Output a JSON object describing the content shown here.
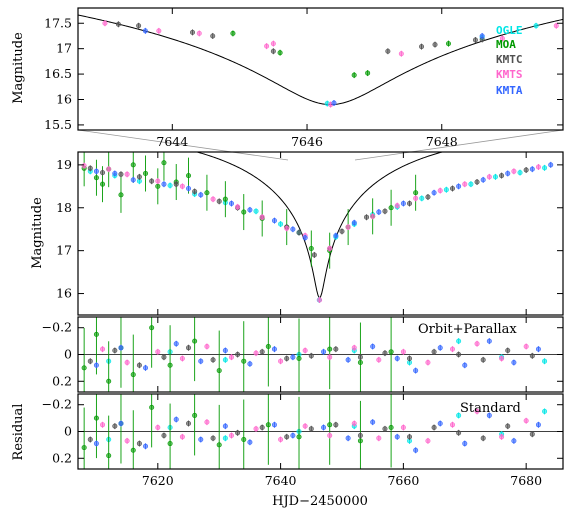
{
  "figure": {
    "x_axis_title": "HJD−2450000",
    "y_axis_title_zoom": "Magnitude",
    "y_axis_title_main": "Magnitude",
    "y_axis_title_residual": "Residual",
    "label_parallax": "Orbit+Parallax",
    "label_standard": "Standard"
  },
  "colors": {
    "OGLE": "#00e6e6",
    "MOA": "#009900",
    "KMTC": "#505050",
    "KMTS": "#ff66cc",
    "KMTA": "#3366ff",
    "model": "#000000",
    "zoom_box": "#999999"
  },
  "chart_data": [
    {
      "id": "zoom",
      "type": "scatter",
      "xlim": [
        7642.6,
        7649.8
      ],
      "ylim": [
        17.8,
        15.4
      ],
      "xticks": [
        7644,
        7646,
        7648
      ],
      "yticks": [
        15.5,
        16,
        16.5,
        17,
        17.5
      ],
      "xtick_labels": [
        "7644",
        "7646",
        "7648"
      ],
      "ytick_labels": [
        "15.5",
        "16",
        "16.5",
        "17",
        "17.5"
      ],
      "ylabel": "Magnitude",
      "model": {
        "t0": 7646.35,
        "peak_mag": 15.9,
        "base_mag": 19.9,
        "u0": 0.025,
        "tE": 30
      },
      "legend": [
        "OGLE",
        "MOA",
        "KMTC",
        "KMTS",
        "KMTA"
      ],
      "series": [
        {
          "name": "OGLE",
          "x": [
            7646.3,
            7648.6,
            7649.4
          ],
          "y": [
            15.92,
            17.22,
            17.45
          ]
        },
        {
          "name": "MOA",
          "x": [
            7644.9,
            7645.6,
            7646.7,
            7646.9,
            7648.1
          ],
          "y": [
            17.3,
            16.92,
            16.48,
            16.52,
            17.1
          ]
        },
        {
          "name": "KMTC",
          "x": [
            7643.2,
            7643.5,
            7644.3,
            7644.6,
            7645.5,
            7647.2,
            7647.7,
            7647.9,
            7648.5,
            7648.6
          ],
          "y": [
            17.48,
            17.45,
            17.32,
            17.25,
            16.95,
            16.95,
            17.04,
            17.08,
            17.17,
            17.18
          ]
        },
        {
          "name": "KMTS",
          "x": [
            7643.0,
            7643.8,
            7644.4,
            7645.4,
            7645.5,
            7646.35,
            7647.4,
            7648.9,
            7649.7
          ],
          "y": [
            17.5,
            17.35,
            17.3,
            17.05,
            17.1,
            15.9,
            16.9,
            17.2,
            17.45
          ]
        },
        {
          "name": "KMTA",
          "x": [
            7643.6,
            7646.4,
            7648.6
          ],
          "y": [
            17.35,
            15.93,
            17.25
          ]
        }
      ]
    },
    {
      "id": "main",
      "type": "scatter",
      "xlim": [
        7607,
        7686
      ],
      "ylim": [
        19.3,
        15.5
      ],
      "xticks": [
        7620,
        7640,
        7660,
        7680
      ],
      "yticks": [
        16,
        17,
        18,
        19
      ],
      "ytick_labels": [
        "16",
        "17",
        "18",
        "19"
      ],
      "ylabel": "Magnitude",
      "zoom_box": {
        "x": [
          7642.6,
          7649.8
        ],
        "y": [
          15.4,
          17.8
        ]
      },
      "series": [
        {
          "name": "OGLE",
          "x": [
            7609,
            7613,
            7617,
            7622,
            7626,
            7631,
            7636,
            7640,
            7643,
            7646.3,
            7649,
            7652,
            7655,
            7659,
            7663,
            7667,
            7671,
            7675,
            7679,
            7683
          ],
          "y": [
            18.85,
            18.75,
            18.62,
            18.52,
            18.32,
            18.12,
            17.92,
            17.62,
            17.42,
            15.85,
            17.32,
            17.62,
            17.84,
            18.02,
            18.22,
            18.42,
            18.55,
            18.72,
            18.82,
            18.93
          ]
        },
        {
          "name": "MOA",
          "x": [
            7608,
            7610,
            7611,
            7612,
            7614,
            7616,
            7618,
            7620,
            7621,
            7623,
            7625,
            7628,
            7631,
            7634,
            7637,
            7641,
            7645,
            7648,
            7651,
            7655,
            7658,
            7662
          ],
          "y": [
            18.92,
            18.7,
            18.55,
            18.9,
            18.3,
            19.0,
            18.8,
            18.5,
            19.05,
            18.6,
            18.75,
            18.35,
            18.2,
            17.9,
            17.75,
            17.55,
            17.05,
            17.0,
            17.55,
            17.8,
            18.0,
            18.35
          ]
        },
        {
          "name": "KMTC",
          "x": [
            7609,
            7611,
            7614,
            7617,
            7619,
            7623,
            7626,
            7630,
            7633,
            7637,
            7641,
            7643,
            7645.5,
            7648,
            7650,
            7654,
            7657,
            7661,
            7664,
            7668,
            7672,
            7676,
            7680
          ],
          "y": [
            18.92,
            18.82,
            18.78,
            18.72,
            18.62,
            18.55,
            18.38,
            18.15,
            18.0,
            17.78,
            17.55,
            17.42,
            16.9,
            17.05,
            17.45,
            17.78,
            17.92,
            18.1,
            18.25,
            18.45,
            18.6,
            18.75,
            18.88
          ]
        },
        {
          "name": "KMTS",
          "x": [
            7608,
            7612,
            7615,
            7620,
            7624,
            7629,
            7633,
            7637,
            7641,
            7644,
            7646.35,
            7648,
            7651,
            7655,
            7659,
            7662,
            7666,
            7670,
            7674,
            7678,
            7682
          ],
          "y": [
            18.98,
            18.9,
            18.78,
            18.62,
            18.5,
            18.2,
            18.02,
            17.78,
            17.52,
            17.35,
            15.85,
            17.05,
            17.55,
            17.8,
            18.05,
            18.22,
            18.4,
            18.55,
            18.72,
            18.85,
            18.95
          ]
        },
        {
          "name": "KMTA",
          "x": [
            7610,
            7613,
            7616,
            7621,
            7625,
            7627,
            7632,
            7635,
            7639,
            7642,
            7644,
            7649,
            7652,
            7656,
            7660,
            7665,
            7669,
            7673,
            7677,
            7681,
            7684
          ],
          "y": [
            18.85,
            18.8,
            18.65,
            18.55,
            18.45,
            18.3,
            18.1,
            17.95,
            17.7,
            17.5,
            17.3,
            17.35,
            17.65,
            17.9,
            18.1,
            18.35,
            18.5,
            18.65,
            18.8,
            18.9,
            19.0
          ]
        }
      ]
    },
    {
      "id": "residual_parallax",
      "type": "scatter",
      "label": "Orbit+Parallax",
      "xlim": [
        7607,
        7686
      ],
      "ylim": [
        -0.28,
        0.28
      ],
      "yticks": [
        -0.2,
        0,
        0.2
      ],
      "ytick_labels": [
        "−0.2",
        "0",
        "0.2"
      ],
      "series": [
        {
          "name": "OGLE",
          "x": [
            7612,
            7622,
            7631,
            7643,
            7652,
            7661,
            7669,
            7676,
            7683
          ],
          "y": [
            0.05,
            -0.02,
            0.04,
            0.0,
            -0.03,
            0.06,
            -0.1,
            0.02,
            0.05
          ]
        },
        {
          "name": "MOA",
          "x": [
            7608,
            7610,
            7612,
            7614,
            7616,
            7619,
            7622,
            7626,
            7630,
            7634,
            7638,
            7643,
            7648,
            7653,
            7658
          ],
          "y": [
            0.1,
            -0.15,
            0.2,
            -0.05,
            0.15,
            -0.2,
            0.08,
            -0.1,
            0.12,
            0.05,
            -0.06,
            0.03,
            -0.04,
            0.06,
            -0.02
          ]
        },
        {
          "name": "KMTC",
          "x": [
            7609,
            7613,
            7617,
            7621,
            7625,
            7629,
            7633,
            7637,
            7641,
            7645,
            7649,
            7653,
            7657,
            7661,
            7665,
            7669,
            7673,
            7677,
            7681
          ],
          "y": [
            0.05,
            -0.03,
            0.08,
            0.02,
            -0.05,
            0.04,
            0.0,
            -0.02,
            0.03,
            0.01,
            -0.04,
            0.02,
            -0.01,
            0.03,
            -0.02,
            0.0,
            0.04,
            -0.03,
            0.01
          ]
        },
        {
          "name": "KMTS",
          "x": [
            7611,
            7615,
            7620,
            7624,
            7628,
            7632,
            7636,
            7640,
            7644,
            7648,
            7652,
            7656,
            7660,
            7664,
            7668,
            7672,
            7676,
            7680
          ],
          "y": [
            -0.04,
            0.06,
            -0.02,
            0.03,
            -0.06,
            0.02,
            -0.01,
            0.05,
            -0.03,
            0.02,
            -0.05,
            0.04,
            -0.02,
            0.06,
            -0.04,
            -0.08,
            0.03,
            -0.06
          ]
        },
        {
          "name": "KMTA",
          "x": [
            7610,
            7614,
            7618,
            7623,
            7627,
            7631,
            7635,
            7639,
            7642,
            7647,
            7651,
            7655,
            7659,
            7662,
            7666,
            7670,
            7674,
            7678,
            7682
          ],
          "y": [
            0.08,
            -0.05,
            0.1,
            -0.08,
            0.05,
            -0.03,
            0.07,
            -0.04,
            0.02,
            -0.02,
            0.04,
            -0.06,
            0.03,
            0.12,
            -0.05,
            0.08,
            -0.1,
            0.06,
            -0.04
          ]
        }
      ]
    },
    {
      "id": "residual_standard",
      "type": "scatter",
      "label": "Standard",
      "ylabel": "Residual",
      "xlabel": "HJD−2450000",
      "xlim": [
        7607,
        7686
      ],
      "ylim": [
        -0.28,
        0.28
      ],
      "xticks": [
        7620,
        7640,
        7660,
        7680
      ],
      "xtick_labels": [
        "7620",
        "7640",
        "7660",
        "7680"
      ],
      "yticks": [
        -0.2,
        0,
        0.2
      ],
      "ytick_labels": [
        "−0.2",
        "0",
        "0.2"
      ],
      "series": [
        {
          "name": "OGLE",
          "x": [
            7612,
            7622,
            7631,
            7643,
            7652,
            7661,
            7669,
            7676,
            7683
          ],
          "y": [
            0.06,
            -0.03,
            0.05,
            0.0,
            -0.04,
            0.07,
            -0.12,
            0.02,
            -0.15
          ]
        },
        {
          "name": "MOA",
          "x": [
            7608,
            7610,
            7612,
            7614,
            7616,
            7619,
            7622,
            7626,
            7630,
            7634,
            7638,
            7643,
            7648,
            7653,
            7658
          ],
          "y": [
            0.12,
            -0.1,
            0.18,
            -0.06,
            0.14,
            -0.18,
            0.09,
            -0.12,
            0.1,
            0.06,
            -0.05,
            0.04,
            -0.05,
            0.07,
            -0.03
          ]
        },
        {
          "name": "KMTC",
          "x": [
            7609,
            7613,
            7617,
            7621,
            7625,
            7629,
            7633,
            7637,
            7641,
            7645,
            7649,
            7653,
            7657,
            7661,
            7665,
            7669,
            7673,
            7677,
            7681
          ],
          "y": [
            0.06,
            -0.04,
            0.09,
            0.03,
            -0.06,
            0.05,
            0.01,
            -0.03,
            0.04,
            -0.02,
            -0.05,
            0.03,
            -0.02,
            0.04,
            -0.03,
            0.01,
            0.05,
            -0.04,
            0.02
          ]
        },
        {
          "name": "KMTS",
          "x": [
            7611,
            7615,
            7620,
            7624,
            7628,
            7632,
            7636,
            7640,
            7644,
            7648,
            7652,
            7656,
            7660,
            7664,
            7668,
            7672,
            7676,
            7680
          ],
          "y": [
            -0.05,
            0.07,
            -0.03,
            0.04,
            -0.07,
            0.03,
            -0.02,
            0.06,
            -0.04,
            0.03,
            -0.06,
            0.05,
            -0.03,
            0.07,
            -0.05,
            -0.15,
            0.04,
            -0.08
          ]
        },
        {
          "name": "KMTA",
          "x": [
            7610,
            7614,
            7618,
            7623,
            7627,
            7631,
            7635,
            7639,
            7642,
            7647,
            7651,
            7655,
            7659,
            7662,
            7666,
            7670,
            7674,
            7678,
            7682
          ],
          "y": [
            0.09,
            -0.06,
            0.11,
            -0.09,
            0.06,
            -0.04,
            0.08,
            -0.05,
            0.03,
            -0.03,
            0.05,
            -0.07,
            0.04,
            0.14,
            -0.06,
            0.09,
            -0.12,
            0.07,
            -0.05
          ]
        }
      ]
    }
  ]
}
